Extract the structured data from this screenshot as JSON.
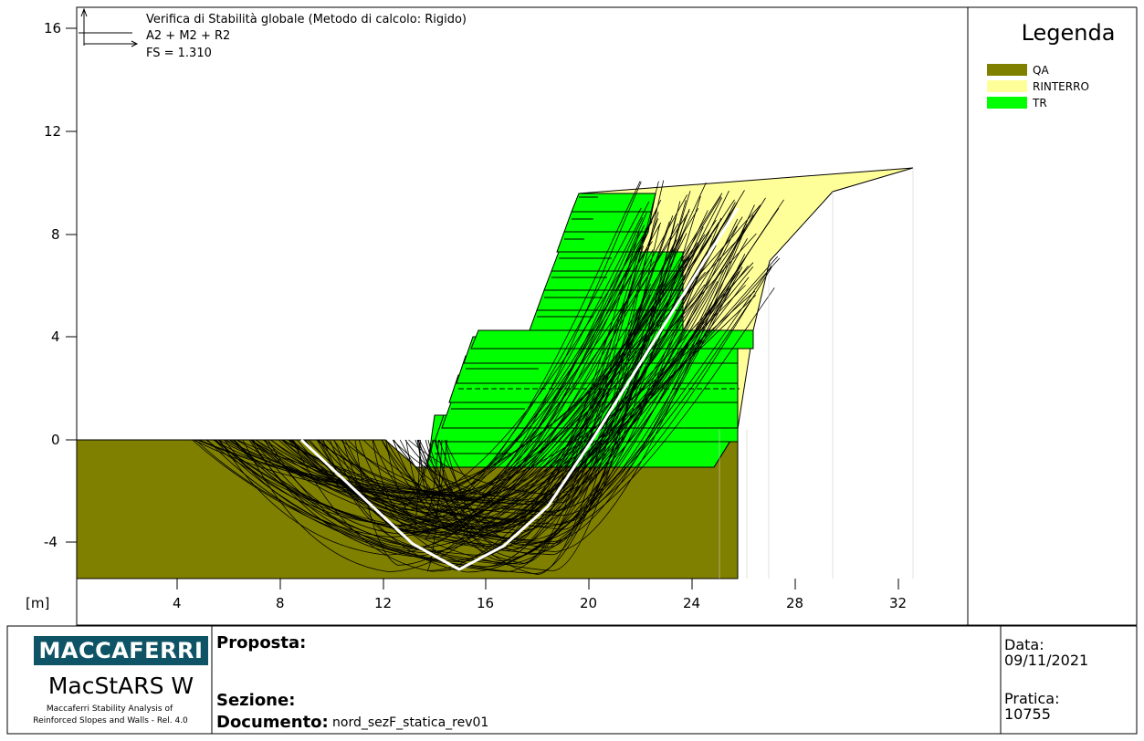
{
  "header": {
    "title": "Verifica di Stabilità globale (Metodo di calcolo: Rigido)",
    "combination": "A2 + M2 + R2",
    "fs": "FS = 1.310"
  },
  "legend": {
    "title": "Legenda",
    "items": [
      {
        "label": "QA",
        "color": "#808000"
      },
      {
        "label": "RINTERRO",
        "color": "#ffff99"
      },
      {
        "label": "TR",
        "color": "#00ff00"
      }
    ]
  },
  "axes": {
    "unit_label": "[m]",
    "x_ticks": [
      "4",
      "8",
      "12",
      "16",
      "20",
      "24",
      "28",
      "32"
    ],
    "y_ticks": [
      "16",
      "12",
      "8",
      "4",
      "0",
      "-4"
    ]
  },
  "footer": {
    "logo_text": "MACCAFERRI",
    "product": "MacStARS W",
    "product_desc_1": "Maccaferri Stability Analysis of",
    "product_desc_2": "Reinforced Slopes and Walls - Rel. 4.0",
    "proposta_label": "Proposta:",
    "sezione_label": "Sezione:",
    "documento_label": "Documento:",
    "documento_value": "nord_sezF_statica_rev01",
    "data_label": "Data:",
    "data_value": "09/11/2021",
    "pratica_label": "Pratica:",
    "pratica_value": "10755"
  },
  "colors": {
    "qa": "#808000",
    "rinterro": "#ffff99",
    "tr": "#00ff00",
    "critical_surface": "#ffffff",
    "trial_surfaces": "#000000"
  }
}
